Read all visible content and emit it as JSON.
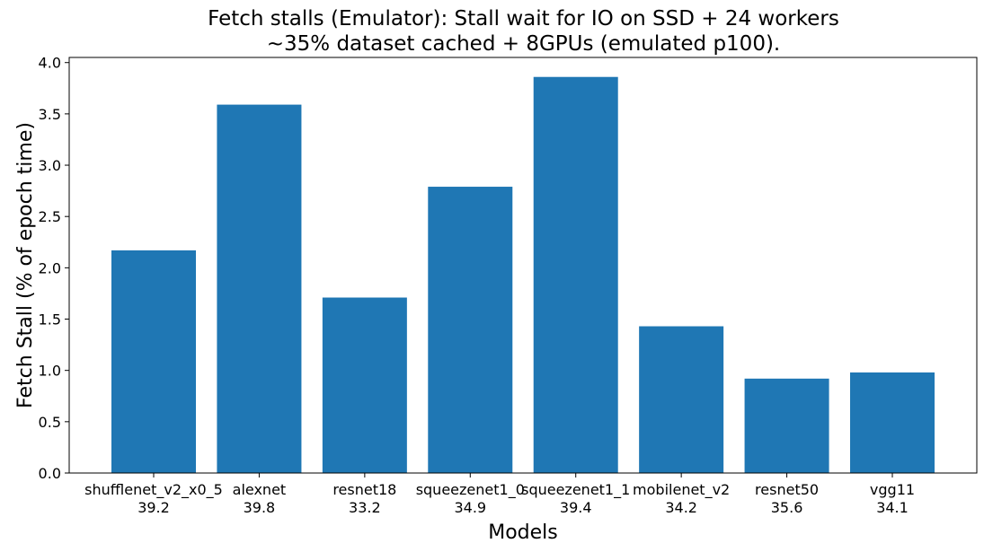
{
  "chart_data": {
    "type": "bar",
    "title": "Fetch stalls (Emulator): Stall wait for IO on SSD + 24 workers",
    "subtitle": "~35% dataset cached + 8GPUs (emulated p100).",
    "xlabel": "Models",
    "ylabel": "Fetch Stall (% of epoch time)",
    "categories": [
      "shufflenet_v2_x0_5",
      "alexnet",
      "resnet18",
      "squeezenet1_0",
      "squeezenet1_1",
      "mobilenet_v2",
      "resnet50",
      "vgg11"
    ],
    "category_sublabels": [
      "39.2",
      "39.8",
      "33.2",
      "34.9",
      "39.4",
      "34.2",
      "35.6",
      "34.1"
    ],
    "values": [
      2.17,
      3.59,
      1.71,
      2.79,
      3.86,
      1.43,
      0.92,
      0.98
    ],
    "ylim": [
      0,
      4.05
    ],
    "yticks": [
      "0.0",
      "0.5",
      "1.0",
      "1.5",
      "2.0",
      "2.5",
      "3.0",
      "3.5",
      "4.0"
    ],
    "bar_color": "#1f77b4",
    "grid": false
  }
}
